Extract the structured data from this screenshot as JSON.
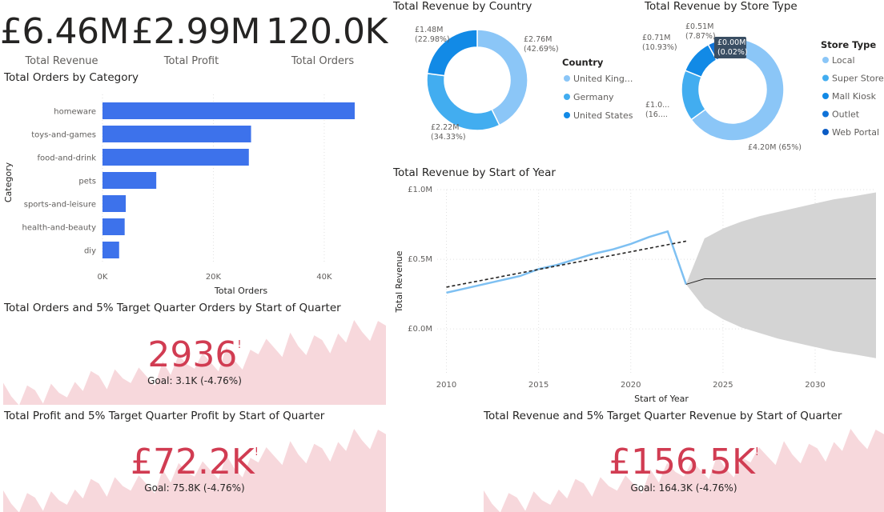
{
  "kpis": [
    {
      "value": "£6.46M",
      "label": "Total Revenue"
    },
    {
      "value": "£2.99M",
      "label": "Total Profit"
    },
    {
      "value": "120.0K",
      "label": "Total Orders"
    }
  ],
  "colors": {
    "bar": "#3d72eb",
    "donut": [
      "#8bc6f7",
      "#42adf0",
      "#128ae6",
      "#0f72d8",
      "#0a5bc4"
    ],
    "line": "#7ec0f2",
    "trend": "#252423",
    "forecast_band": "#d4d4d4",
    "gauge_value": "#d13c52",
    "gauge_area": "#f7d8dc",
    "grid": "#e1e1e1"
  },
  "chart_data": [
    {
      "type": "bar",
      "orientation": "horizontal",
      "title": "Total Orders by Category",
      "categories": [
        "homeware",
        "toys-and-games",
        "food-and-drink",
        "pets",
        "sports-and-leisure",
        "health-and-beauty",
        "diy"
      ],
      "values": [
        45500,
        26800,
        26400,
        9700,
        4200,
        4000,
        3000
      ],
      "xlabel": "Total Orders",
      "ylabel": "Category",
      "xlim": [
        0,
        45500
      ],
      "xticks": [
        "0K",
        "20K",
        "40K"
      ],
      "xtick_values": [
        0,
        20000,
        40000
      ]
    },
    {
      "type": "pie",
      "donut": true,
      "title": "Total Revenue by Country",
      "legend_title": "Country",
      "legend_position": "right",
      "labels": [
        "United King...",
        "Germany",
        "United States"
      ],
      "values": [
        2.76,
        2.22,
        1.48
      ],
      "percents": [
        42.69,
        34.33,
        22.98
      ],
      "data_labels": [
        [
          "£2.76M",
          "(42.69%)"
        ],
        [
          "£2.22M",
          "(34.33%)"
        ],
        [
          "£1.48M",
          "(22.98%)"
        ]
      ]
    },
    {
      "type": "pie",
      "donut": true,
      "title": "Total Revenue by Store Type",
      "legend_title": "Store Type",
      "legend_position": "right",
      "labels": [
        "Local",
        "Super Store",
        "Mall Kiosk",
        "Outlet",
        "Web Portal"
      ],
      "values": [
        4.2,
        1.04,
        0.71,
        0.51,
        0.001
      ],
      "percents": [
        65,
        16.1,
        10.93,
        7.87,
        0.02
      ],
      "data_labels": [
        [
          "£4.20M (65%)"
        ],
        [
          "£1.0...",
          "(16...."
        ],
        [
          "£0.71M",
          "(10.93%)"
        ],
        [
          "£0.51M",
          "(7.87%)"
        ],
        [
          "£0.00M",
          "(0.02%)"
        ]
      ]
    },
    {
      "type": "line",
      "title": "Total Revenue by Start of Year",
      "xlabel": "Start of Year",
      "ylabel": "Total Revenue",
      "xlim": [
        2009.5,
        2033.3
      ],
      "ylim": [
        -0.2,
        1.0
      ],
      "xticks": [
        "2010",
        "2015",
        "2020",
        "2025",
        "2030"
      ],
      "xtick_values": [
        2010,
        2015,
        2020,
        2025,
        2030
      ],
      "yticks": [
        "£0.0M",
        "£0.5M",
        "£1.0M"
      ],
      "ytick_values": [
        0,
        0.5,
        1.0
      ],
      "grid": true,
      "series": [
        {
          "x": [
            2010,
            2011,
            2012,
            2013,
            2014,
            2015,
            2016,
            2017,
            2018,
            2019,
            2020,
            2021,
            2022,
            2023
          ],
          "values": [
            0.26,
            0.29,
            0.32,
            0.35,
            0.38,
            0.43,
            0.46,
            0.5,
            0.54,
            0.57,
            0.61,
            0.66,
            0.7,
            0.32
          ]
        }
      ],
      "trend": {
        "x": [
          2010,
          2023
        ],
        "values": [
          0.3,
          0.63
        ]
      },
      "forecast": {
        "x": [
          2023,
          2024,
          2025,
          2026,
          2027,
          2028,
          2029,
          2030,
          2031,
          2032,
          2033.3
        ],
        "values": [
          0.32,
          0.36,
          0.36,
          0.36,
          0.36,
          0.36,
          0.36,
          0.36,
          0.36,
          0.36,
          0.36
        ],
        "upper": [
          0.32,
          0.65,
          0.72,
          0.77,
          0.81,
          0.84,
          0.87,
          0.9,
          0.93,
          0.95,
          0.98
        ],
        "lower": [
          0.32,
          0.15,
          0.07,
          0.01,
          -0.03,
          -0.07,
          -0.1,
          -0.13,
          -0.16,
          -0.18,
          -0.21
        ]
      }
    }
  ],
  "gauges": [
    {
      "title": "Total Orders and 5% Target Quarter Orders by Start of Quarter",
      "value": "2936",
      "goal": "Goal: 3.1K (-4.76%)",
      "alert": "!"
    },
    {
      "title": "Total Profit and 5% Target Quarter Profit by Start of Quarter",
      "value": "£72.2K",
      "goal": "Goal: 75.8K (-4.76%)",
      "alert": "!"
    },
    {
      "title": "Total Revenue and 5% Target Quarter Revenue by Start of Quarter",
      "value": "£156.5K",
      "goal": "Goal: 164.3K (-4.76%)",
      "alert": "!"
    }
  ]
}
